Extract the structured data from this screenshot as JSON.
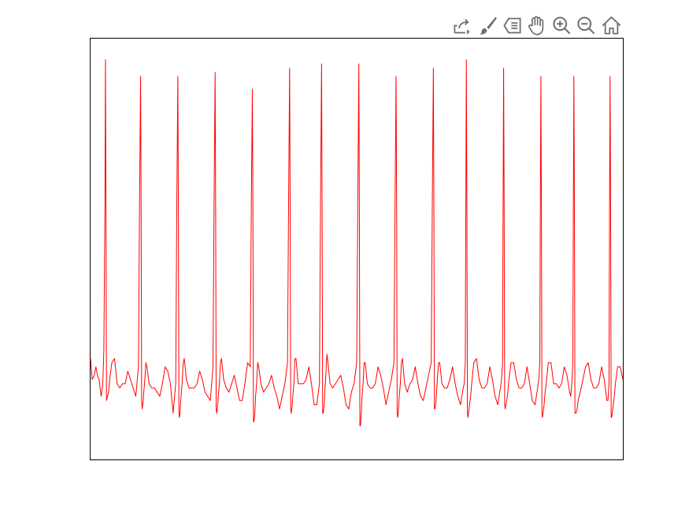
{
  "toolbar": {
    "buttons": [
      {
        "name": "export-button",
        "icon": "export-icon"
      },
      {
        "name": "brush-button",
        "icon": "brush-icon"
      },
      {
        "name": "data-cursor-button",
        "icon": "data-cursor-icon"
      },
      {
        "name": "pan-button",
        "icon": "hand-icon"
      },
      {
        "name": "zoom-in-button",
        "icon": "zoom-in-icon"
      },
      {
        "name": "zoom-out-button",
        "icon": "zoom-out-icon"
      },
      {
        "name": "home-button",
        "icon": "home-icon"
      }
    ],
    "icon_color": "#6e6e6e"
  },
  "chart_data": {
    "type": "line",
    "title": "",
    "xlabel": "",
    "ylabel": "",
    "grid": false,
    "xlim": [
      0,
      1000
    ],
    "ylim": [
      0,
      100
    ],
    "series": [
      {
        "color": "#ff0000",
        "x": [
          0,
          3,
          7,
          10,
          13,
          16,
          20,
          23,
          25,
          27,
          28,
          29,
          30,
          32,
          34,
          36,
          40,
          45,
          50,
          55,
          60,
          65,
          70,
          75,
          80,
          85,
          90,
          92,
          94,
          95,
          96,
          97,
          98,
          99,
          100,
          102,
          104,
          106,
          110,
          115,
          120,
          125,
          130,
          135,
          140,
          145,
          150,
          155,
          160,
          162,
          164,
          165,
          166,
          167,
          168,
          169,
          170,
          172,
          174,
          176,
          180,
          185,
          190,
          195,
          200,
          205,
          210,
          215,
          220,
          225,
          230,
          232,
          234,
          235,
          236,
          237,
          238,
          239,
          240,
          242,
          244,
          246,
          250,
          255,
          260,
          265,
          270,
          275,
          280,
          285,
          290,
          295,
          300,
          302,
          304,
          305,
          306,
          307,
          308,
          309,
          310,
          312,
          314,
          316,
          320,
          325,
          330,
          335,
          340,
          345,
          350,
          355,
          360,
          365,
          370,
          372,
          374,
          375,
          376,
          377,
          378,
          379,
          380,
          382,
          384,
          386,
          390,
          395,
          400,
          405,
          410,
          415,
          420,
          425,
          430,
          432,
          434,
          435,
          436,
          437,
          438,
          439,
          440,
          442,
          444,
          446,
          450,
          455,
          460,
          465,
          470,
          475,
          480,
          485,
          490,
          495,
          500,
          502,
          504,
          505,
          506,
          507,
          508,
          509,
          510,
          512,
          514,
          516,
          520,
          525,
          530,
          535,
          540,
          545,
          550,
          555,
          560,
          565,
          570,
          572,
          574,
          575,
          576,
          577,
          578,
          579,
          580,
          582,
          584,
          586,
          590,
          595,
          600,
          605,
          610,
          615,
          620,
          625,
          630,
          635,
          640,
          642,
          644,
          645,
          646,
          647,
          648,
          649,
          650,
          652,
          654,
          656,
          660,
          665,
          670,
          675,
          680,
          685,
          690,
          695,
          700,
          702,
          704,
          705,
          706,
          707,
          708,
          709,
          710,
          712,
          714,
          716,
          720,
          725,
          730,
          735,
          740,
          745,
          750,
          755,
          760,
          765,
          770,
          772,
          774,
          775,
          776,
          777,
          778,
          779,
          780,
          782,
          784,
          786,
          790,
          795,
          800,
          805,
          810,
          815,
          820,
          825,
          830,
          835,
          840,
          842,
          844,
          845,
          846,
          847,
          848,
          849,
          850,
          852,
          854,
          856,
          860,
          865,
          870,
          875,
          880,
          885,
          890,
          895,
          900,
          902,
          904,
          905,
          906,
          907,
          908,
          909,
          910,
          912,
          914,
          916,
          920,
          925,
          930,
          935,
          940,
          945,
          950,
          955,
          960,
          965,
          970,
          972,
          974,
          975,
          976,
          977,
          978,
          979,
          980,
          982,
          984,
          986,
          990,
          995,
          1000
        ],
        "y": [
          24,
          19,
          20,
          22,
          20,
          19,
          15,
          18,
          26,
          60,
          95,
          60,
          14,
          15,
          16,
          19,
          23,
          24,
          18,
          17,
          18,
          18,
          21,
          19,
          17,
          15,
          22,
          60,
          91,
          60,
          14,
          12,
          13,
          14,
          16,
          19,
          23,
          22,
          18,
          17,
          17,
          16,
          15,
          18,
          22,
          21,
          18,
          11,
          18,
          60,
          91,
          60,
          11,
          10,
          11,
          13,
          15,
          18,
          23,
          24,
          19,
          17,
          17,
          17,
          18,
          21,
          19,
          16,
          15,
          14,
          22,
          60,
          92,
          60,
          12,
          11,
          12,
          13,
          15,
          18,
          23,
          24,
          19,
          17,
          16,
          18,
          20,
          17,
          14,
          14,
          18,
          23,
          22,
          60,
          88,
          60,
          9,
          9,
          10,
          12,
          15,
          18,
          23,
          22,
          18,
          16,
          17,
          18,
          20,
          17,
          15,
          12,
          15,
          18,
          23,
          60,
          93,
          60,
          12,
          11,
          12,
          13,
          15,
          18,
          24,
          24,
          18,
          18,
          18,
          19,
          22,
          18,
          13,
          13,
          18,
          60,
          94,
          60,
          11,
          11,
          12,
          13,
          16,
          20,
          25,
          23,
          18,
          17,
          18,
          19,
          20,
          17,
          13,
          12,
          16,
          18,
          23,
          60,
          94,
          60,
          8,
          8,
          10,
          12,
          15,
          18,
          23,
          23,
          18,
          17,
          17,
          18,
          22,
          20,
          17,
          13,
          16,
          19,
          23,
          60,
          91,
          60,
          11,
          10,
          11,
          13,
          15,
          18,
          23,
          24,
          18,
          16,
          18,
          19,
          22,
          18,
          15,
          14,
          17,
          20,
          23,
          60,
          93,
          60,
          12,
          12,
          13,
          14,
          16,
          20,
          23,
          23,
          18,
          17,
          17,
          19,
          22,
          18,
          15,
          13,
          17,
          18,
          23,
          60,
          95,
          60,
          11,
          10,
          11,
          13,
          15,
          18,
          23,
          24,
          19,
          17,
          17,
          18,
          22,
          19,
          15,
          13,
          17,
          19,
          23,
          60,
          93,
          60,
          13,
          12,
          13,
          14,
          16,
          19,
          23,
          23,
          19,
          17,
          17,
          18,
          22,
          18,
          14,
          13,
          17,
          19,
          23,
          60,
          91,
          60,
          11,
          10,
          11,
          13,
          16,
          18,
          23,
          23,
          18,
          18,
          17,
          18,
          22,
          20,
          16,
          15,
          18,
          20,
          23,
          60,
          91,
          60,
          11,
          11,
          12,
          14,
          16,
          19,
          22,
          23,
          19,
          17,
          17,
          18,
          22,
          19,
          14,
          14,
          18,
          60,
          91,
          60,
          10,
          10,
          11,
          13,
          15,
          18,
          22,
          22,
          19
        ]
      }
    ]
  }
}
